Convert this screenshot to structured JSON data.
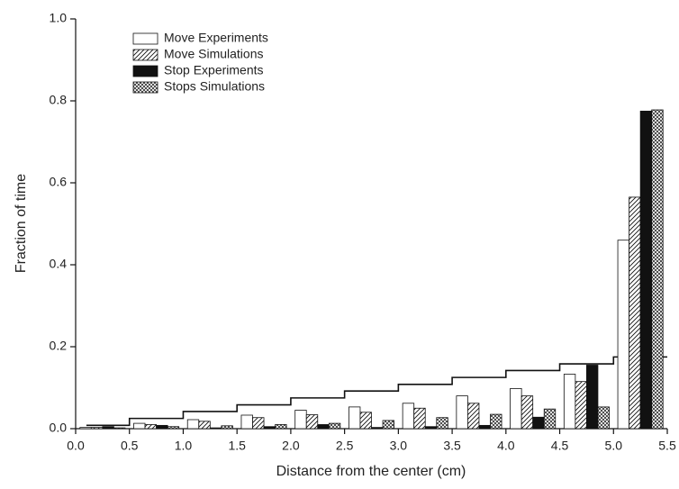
{
  "chart_data": {
    "type": "grouped_histogram",
    "xlabel": "Distance from the center (cm)",
    "ylabel": "Fraction of time",
    "bins": [
      0,
      0.5,
      1.0,
      1.5,
      2.0,
      2.5,
      3.0,
      3.5,
      4.0,
      4.5,
      5.0,
      5.5
    ],
    "series": [
      {
        "name": "Move Experiments",
        "color": "#ffffff",
        "pattern": "none",
        "values": [
          0.003,
          0.013,
          0.022,
          0.033,
          0.045,
          0.053,
          0.062,
          0.08,
          0.098,
          0.133,
          0.46
        ]
      },
      {
        "name": "Move Simulations",
        "color": "#ffffff",
        "pattern": "diagonal",
        "values": [
          0.003,
          0.01,
          0.018,
          0.027,
          0.034,
          0.04,
          0.05,
          0.062,
          0.08,
          0.115,
          0.565
        ]
      },
      {
        "name": "Stop Experiments",
        "color": "#111111",
        "pattern": "solid",
        "values": [
          0.005,
          0.008,
          0.002,
          0.005,
          0.01,
          0.003,
          0.005,
          0.008,
          0.028,
          0.155,
          0.775
        ]
      },
      {
        "name": "Stops Simulations",
        "color": "#ffffff",
        "pattern": "crosshatch",
        "values": [
          0.002,
          0.005,
          0.007,
          0.01,
          0.013,
          0.02,
          0.027,
          0.035,
          0.048,
          0.053,
          0.778
        ]
      }
    ],
    "step_line": {
      "x": [
        0.1,
        0.5,
        1.0,
        1.5,
        2.0,
        2.5,
        3.0,
        3.5,
        4.0,
        4.5,
        5.0
      ],
      "values": [
        0.008,
        0.025,
        0.042,
        0.058,
        0.075,
        0.092,
        0.108,
        0.125,
        0.142,
        0.158,
        0.175
      ],
      "color": "#111111"
    },
    "xlim": [
      0,
      5.5
    ],
    "ylim": [
      0,
      1.0
    ],
    "xticks": [
      {
        "value": 0,
        "label": "0.0"
      },
      {
        "value": 0.5,
        "label": "0.5"
      },
      {
        "value": 1.0,
        "label": "1.0"
      },
      {
        "value": 1.5,
        "label": "1.5"
      },
      {
        "value": 2.0,
        "label": "2.0"
      },
      {
        "value": 2.5,
        "label": "2.5"
      },
      {
        "value": 3.0,
        "label": "3.0"
      },
      {
        "value": 3.5,
        "label": "3.5"
      },
      {
        "value": 4.0,
        "label": "4.0"
      },
      {
        "value": 4.5,
        "label": "4.5"
      },
      {
        "value": 5.0,
        "label": "5.0"
      },
      {
        "value": 5.5,
        "label": "5.5"
      }
    ],
    "yticks": [
      {
        "value": 0,
        "label": "0.0"
      },
      {
        "value": 0.2,
        "label": "0.2"
      },
      {
        "value": 0.4,
        "label": "0.4"
      },
      {
        "value": 0.6,
        "label": "0.6"
      },
      {
        "value": 0.8,
        "label": "0.8"
      },
      {
        "value": 1.0,
        "label": "1.0"
      }
    ],
    "legend": "upper-left"
  }
}
